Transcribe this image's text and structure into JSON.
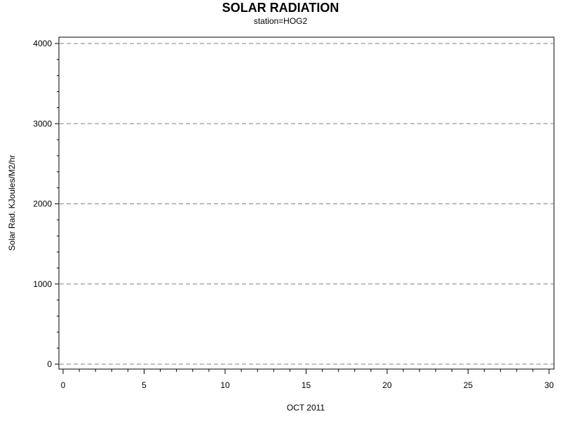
{
  "chart_data": {
    "type": "line",
    "title": "SOLAR RADIATION",
    "subtitle": "station=HOG2",
    "xlabel": "OCT 2011",
    "ylabel": "Solar Rad. KJoules/M2/hr",
    "xlim": [
      0,
      30
    ],
    "ylim": [
      0,
      4000
    ],
    "x_ticks": [
      0,
      5,
      10,
      15,
      20,
      25,
      30
    ],
    "x_minor_step": 1,
    "y_ticks": [
      0,
      1000,
      2000,
      3000,
      4000
    ],
    "y_minor_step": 200,
    "grid": {
      "y_major": true,
      "style": "dashed",
      "color": "#808080"
    },
    "series": []
  }
}
